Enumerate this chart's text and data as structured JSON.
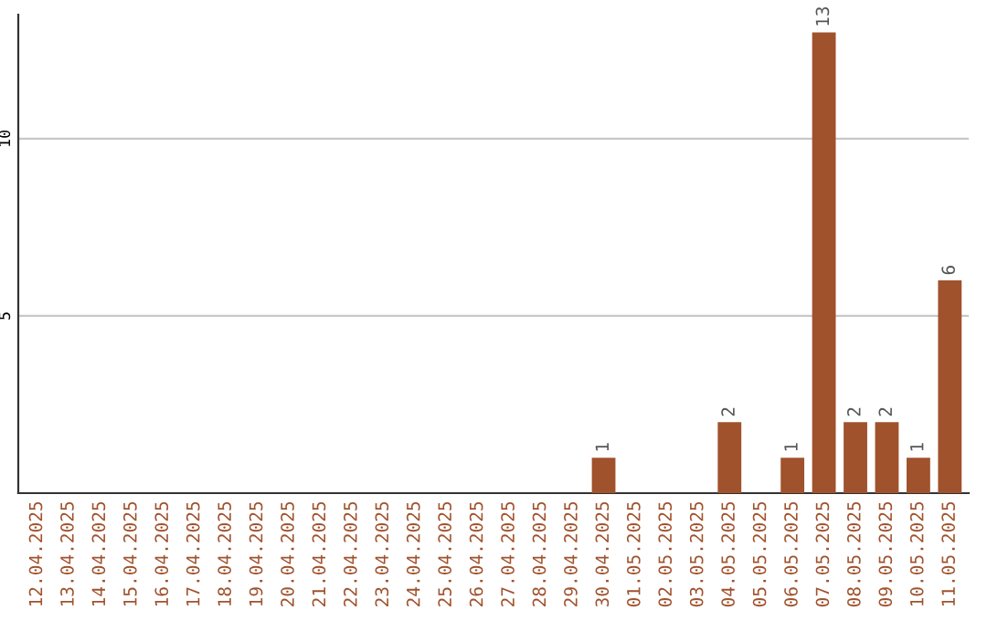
{
  "chart_data": {
    "type": "bar",
    "categories": [
      "12.04.2025",
      "13.04.2025",
      "14.04.2025",
      "15.04.2025",
      "16.04.2025",
      "17.04.2025",
      "18.04.2025",
      "19.04.2025",
      "20.04.2025",
      "21.04.2025",
      "22.04.2025",
      "23.04.2025",
      "24.04.2025",
      "25.04.2025",
      "26.04.2025",
      "27.04.2025",
      "28.04.2025",
      "29.04.2025",
      "30.04.2025",
      "01.05.2025",
      "02.05.2025",
      "03.05.2025",
      "04.05.2025",
      "05.05.2025",
      "06.05.2025",
      "07.05.2025",
      "08.05.2025",
      "09.05.2025",
      "10.05.2025",
      "11.05.2025"
    ],
    "values": [
      0,
      0,
      0,
      0,
      0,
      0,
      0,
      0,
      0,
      0,
      0,
      0,
      0,
      0,
      0,
      0,
      0,
      0,
      1,
      0,
      0,
      0,
      2,
      0,
      1,
      13,
      2,
      2,
      1,
      6
    ],
    "value_labels": [
      null,
      null,
      null,
      null,
      null,
      null,
      null,
      null,
      null,
      null,
      null,
      null,
      null,
      null,
      null,
      null,
      null,
      null,
      "1",
      null,
      null,
      null,
      "2",
      null,
      "1",
      "13",
      "2",
      "2",
      "1",
      "6"
    ],
    "color": "#a0522d",
    "ylim": [
      0,
      13.5
    ],
    "yticks": [
      5,
      10
    ],
    "grid": "y"
  }
}
